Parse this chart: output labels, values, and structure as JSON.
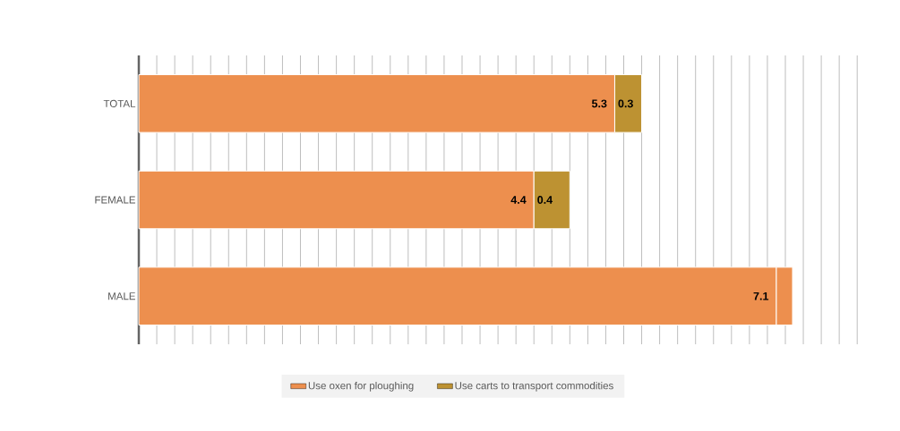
{
  "chart_data": {
    "type": "bar",
    "orientation": "horizontal",
    "stacked": true,
    "categories": [
      "TOTAL",
      "FEMALE",
      "MALE"
    ],
    "series": [
      {
        "name": "Use oxen for ploughing",
        "color": "#ed8f4e",
        "values": [
          5.3,
          4.4,
          7.1
        ],
        "value_labels": [
          "5.3",
          "4.4",
          "7.1"
        ]
      },
      {
        "name": "Use carts to transport commodities",
        "color": "#bd9232",
        "colors": [
          "#bd9232",
          "#bd9232",
          "#ed8f4e"
        ],
        "values": [
          0.3,
          0.4,
          0.18
        ],
        "value_labels": [
          "0.3",
          "0.4",
          null
        ]
      }
    ],
    "tick_labels": "y",
    "grid": "x",
    "legend": "bottom"
  }
}
